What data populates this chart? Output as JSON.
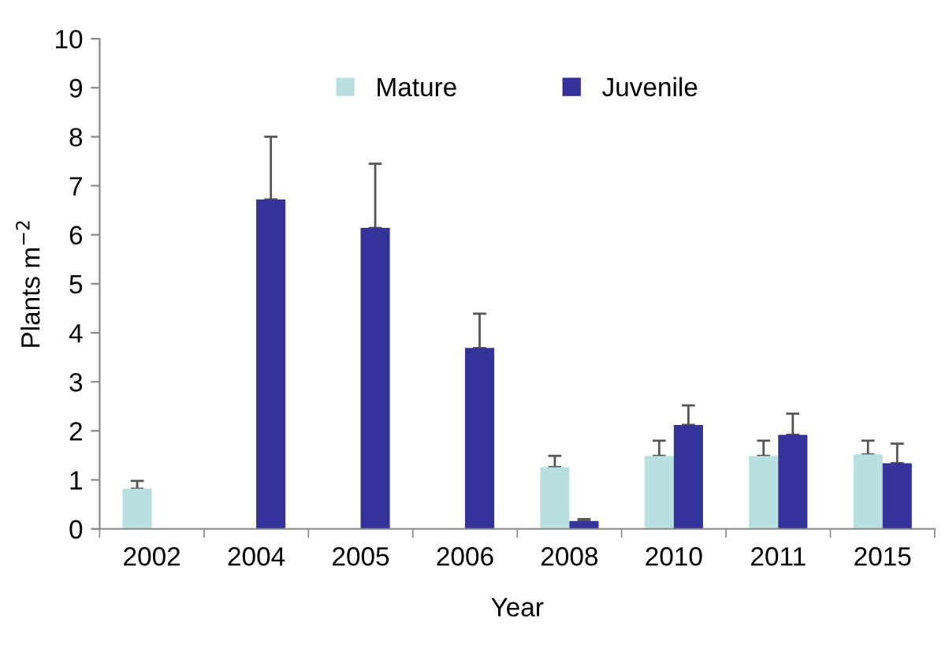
{
  "chart_data": {
    "type": "bar",
    "xlabel": "Year",
    "ylabel": "Plants m$^{−2}$",
    "categories": [
      "2002",
      "2004",
      "2005",
      "2006",
      "2008",
      "2010",
      "2011",
      "2015"
    ],
    "series": [
      {
        "name": "Mature",
        "color": "#b8e0e3",
        "values": [
          0.82,
          null,
          null,
          null,
          1.26,
          1.49,
          1.49,
          1.52
        ],
        "errors": [
          [
            0.82,
            0.98
          ],
          null,
          null,
          null,
          [
            1.26,
            1.49
          ],
          [
            1.49,
            1.8
          ],
          [
            1.49,
            1.8
          ],
          [
            1.52,
            1.8
          ]
        ]
      },
      {
        "name": "Juvenile",
        "color": "#333399",
        "values": [
          null,
          6.72,
          6.14,
          3.69,
          0.16,
          2.12,
          1.92,
          1.34
        ],
        "errors": [
          null,
          [
            6.72,
            8.0
          ],
          [
            6.14,
            7.45
          ],
          [
            3.69,
            4.39
          ],
          [
            0.16,
            0.2
          ],
          [
            2.12,
            2.52
          ],
          [
            1.92,
            2.35
          ],
          [
            1.34,
            1.74
          ]
        ]
      }
    ],
    "ylim": [
      0,
      10
    ],
    "yticks": [
      0,
      1,
      2,
      3,
      4,
      5,
      6,
      7,
      8,
      9,
      10
    ],
    "grid": false,
    "legend": "top"
  }
}
